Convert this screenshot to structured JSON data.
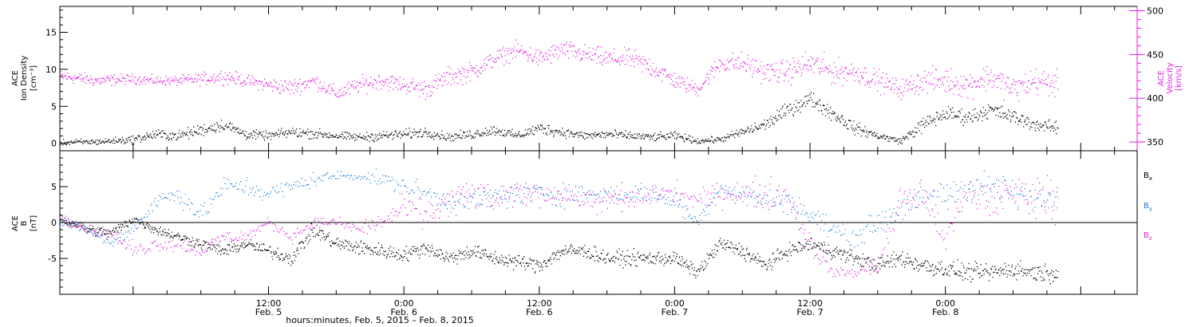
{
  "chart_data": [
    {
      "type": "scatter",
      "panel": "top",
      "ylabel_left": [
        "ACE",
        "Ion Density",
        "[cm⁻³]"
      ],
      "ylabel_right": [
        "ACE",
        "Velocity",
        "[km/s]"
      ],
      "ylim_left": [
        -1,
        18.5
      ],
      "ylim_right": [
        340,
        505
      ],
      "yticks_left": [
        "0",
        "5",
        "10",
        "15"
      ],
      "yticks_right": [
        "350",
        "400",
        "450",
        "500"
      ],
      "colors": {
        "density": "#000000",
        "velocity": "#e020e0"
      },
      "series": [
        {
          "key": "density",
          "axis": "left",
          "color": "#000000",
          "x": [
            -6.5,
            -3,
            0,
            2,
            4,
            6,
            8,
            10,
            12,
            14,
            16,
            18,
            20,
            22,
            24,
            26,
            28,
            30,
            32,
            34,
            36,
            38,
            40,
            42,
            44,
            46,
            48,
            50,
            52,
            54,
            56,
            58,
            60,
            62,
            64,
            66,
            68,
            70,
            72,
            74,
            76,
            78,
            80,
            82
          ],
          "values": [
            0.1,
            0.2,
            0.5,
            1.2,
            1.0,
            1.8,
            2.5,
            1.2,
            1.0,
            1.5,
            1.3,
            1.0,
            0.8,
            1.0,
            1.2,
            1.5,
            0.8,
            1.2,
            1.8,
            1.0,
            2.0,
            1.5,
            1.0,
            1.2,
            1.0,
            0.8,
            1.0,
            0.3,
            0.5,
            1.5,
            2.5,
            4.5,
            6.0,
            4.0,
            2.0,
            1.0,
            0.3,
            2.5,
            4.0,
            3.5,
            4.5,
            3.5,
            2.5,
            2.0
          ],
          "scatter": [
            0.6,
            0.6,
            0.8,
            1.0,
            1.0,
            1.2,
            1.2,
            1.0,
            0.8,
            1.0,
            1.0,
            0.8,
            0.8,
            1.0,
            1.0,
            1.0,
            0.8,
            1.0,
            1.0,
            0.8,
            1.2,
            1.0,
            0.8,
            1.0,
            0.8,
            0.8,
            0.8,
            0.6,
            0.6,
            1.0,
            1.2,
            1.5,
            1.5,
            1.5,
            1.2,
            0.8,
            0.6,
            1.5,
            1.5,
            1.5,
            1.5,
            1.5,
            1.2,
            1.2
          ],
          "points_per_hour": 18,
          "end_hour": 82
        },
        {
          "key": "velocity",
          "axis": "right",
          "color": "#e020e0",
          "x": [
            -6.5,
            -3,
            0,
            2,
            4,
            6,
            8,
            10,
            12,
            14,
            16,
            18,
            20,
            22,
            24,
            26,
            28,
            30,
            32,
            34,
            36,
            38,
            40,
            42,
            44,
            46,
            48,
            50,
            52,
            54,
            56,
            58,
            60,
            62,
            64,
            66,
            68,
            70,
            72,
            74,
            76,
            78,
            80,
            82
          ],
          "values": [
            425,
            420,
            422,
            420,
            420,
            422,
            425,
            420,
            415,
            412,
            420,
            405,
            415,
            420,
            415,
            410,
            425,
            430,
            445,
            455,
            445,
            455,
            450,
            445,
            445,
            435,
            420,
            410,
            440,
            440,
            430,
            430,
            440,
            430,
            430,
            420,
            410,
            420,
            420,
            415,
            425,
            410,
            420,
            415
          ],
          "scatter": [
            10,
            10,
            8,
            8,
            8,
            10,
            12,
            10,
            12,
            14,
            12,
            12,
            14,
            14,
            14,
            16,
            16,
            16,
            14,
            14,
            16,
            16,
            16,
            16,
            16,
            18,
            14,
            12,
            16,
            18,
            18,
            20,
            22,
            22,
            18,
            18,
            16,
            20,
            22,
            22,
            22,
            22,
            22,
            22
          ],
          "points_per_hour": 18,
          "end_hour": 82
        }
      ]
    },
    {
      "type": "scatter",
      "panel": "bottom",
      "ylabel_left": [
        "ACE",
        "B",
        "[nT]"
      ],
      "ylim": [
        -10,
        10
      ],
      "yticks": [
        "-5",
        "0",
        "5"
      ],
      "reference_line": 0,
      "legend": [
        "B",
        "B",
        "B"
      ],
      "legend_subscripts": [
        "x",
        "y",
        "z"
      ],
      "colors": {
        "bx": "#000000",
        "by": "#2080e0",
        "bz": "#e020e0"
      },
      "series": [
        {
          "key": "bx",
          "color": "#000000",
          "x": [
            -6.5,
            -4,
            -2,
            0,
            2,
            4,
            6,
            8,
            10,
            12,
            14,
            16,
            18,
            20,
            22,
            24,
            26,
            28,
            30,
            32,
            34,
            36,
            38,
            40,
            42,
            44,
            46,
            48,
            50,
            52,
            54,
            56,
            58,
            60,
            62,
            64,
            66,
            68,
            70,
            72,
            74,
            76,
            78,
            80,
            82
          ],
          "values": [
            0.5,
            -1,
            -1.5,
            0.5,
            -1,
            -2,
            -3,
            -4,
            -3,
            -4,
            -5,
            -1,
            -3,
            -3.5,
            -4,
            -4.5,
            -3.5,
            -5,
            -4,
            -5,
            -5.5,
            -6,
            -4,
            -4,
            -5,
            -5,
            -5,
            -5,
            -7,
            -3,
            -4,
            -6,
            -4,
            -3,
            -4,
            -5,
            -6,
            -5,
            -6,
            -6.5,
            -7,
            -7,
            -6.5,
            -7,
            -7
          ],
          "scatter": [
            1,
            1,
            1,
            1,
            1,
            1,
            1.2,
            1.2,
            1.2,
            1.2,
            1.5,
            1.5,
            1.5,
            1.5,
            1.5,
            1.5,
            1.5,
            1.5,
            1.5,
            1.5,
            1.5,
            1.5,
            1.5,
            1.5,
            1.5,
            1.5,
            1.5,
            1.5,
            1.2,
            1.5,
            1.5,
            1.5,
            1.5,
            1.5,
            1.5,
            1.5,
            1.5,
            1.8,
            1.8,
            1.8,
            1.8,
            1.8,
            1.8,
            1.8,
            1.8
          ],
          "points_per_hour": 18,
          "end_hour": 82
        },
        {
          "key": "by",
          "color": "#2080e0",
          "x": [
            -6.5,
            -4,
            -2,
            0,
            2,
            4,
            6,
            8,
            10,
            12,
            14,
            16,
            18,
            20,
            22,
            24,
            26,
            28,
            30,
            32,
            34,
            36,
            38,
            40,
            42,
            44,
            46,
            48,
            50,
            52,
            54,
            56,
            58,
            60,
            62,
            64,
            66,
            68,
            70,
            72,
            74,
            76,
            78,
            80,
            82
          ],
          "values": [
            0,
            -1,
            -3,
            -1,
            3,
            4,
            1,
            5,
            5,
            4,
            5,
            6,
            6.5,
            6.5,
            6,
            5,
            4,
            3,
            3,
            3.5,
            4,
            4,
            4,
            4,
            4,
            4,
            4,
            3,
            0,
            5,
            4,
            3,
            3,
            1,
            -1,
            -2,
            0,
            2,
            3,
            4,
            5,
            5,
            4,
            3,
            4
          ],
          "scatter": [
            1,
            1,
            1,
            1.5,
            2,
            2,
            2,
            2,
            2,
            2,
            1.5,
            1.5,
            1,
            1,
            1.5,
            2,
            2,
            2.5,
            2.5,
            2.5,
            2.5,
            2.5,
            2.5,
            2,
            2,
            2,
            2,
            2,
            1.5,
            1.5,
            2,
            2.5,
            2.5,
            2.5,
            2,
            2,
            2.5,
            3,
            3,
            3,
            3,
            3,
            3,
            3,
            3
          ],
          "points_per_hour": 10,
          "end_hour": 82
        },
        {
          "key": "bz",
          "color": "#e020e0",
          "x": [
            -6.5,
            -4,
            -2,
            0,
            2,
            4,
            6,
            8,
            10,
            12,
            14,
            16,
            18,
            20,
            22,
            24,
            26,
            28,
            30,
            32,
            34,
            36,
            38,
            40,
            42,
            44,
            46,
            48,
            50,
            52,
            54,
            56,
            58,
            60,
            62,
            64,
            66,
            68,
            70,
            72,
            74,
            76,
            78,
            80,
            82
          ],
          "values": [
            1,
            -1,
            -1.5,
            -4,
            -3,
            -3,
            -4,
            -2,
            -2,
            0,
            -2,
            0,
            0,
            -1,
            0,
            2,
            1,
            3,
            4,
            3,
            4,
            4,
            4,
            3,
            3,
            3,
            4,
            4,
            3,
            4,
            4,
            4,
            4,
            -3,
            -7,
            -7,
            -6,
            3,
            4,
            -2,
            4,
            3,
            4,
            4,
            3
          ],
          "scatter": [
            1,
            1,
            1.2,
            1.5,
            1.5,
            1.5,
            1.5,
            1.5,
            1.2,
            1,
            1.2,
            1,
            1,
            1.5,
            2,
            2.5,
            3,
            3,
            3,
            3,
            2.5,
            2.5,
            2,
            2,
            2.5,
            2.5,
            2.5,
            2.5,
            2,
            2.5,
            3,
            3,
            3,
            3,
            1,
            1,
            2,
            3.5,
            4,
            4,
            4,
            4,
            4,
            4,
            4
          ],
          "points_per_hour": 10,
          "end_hour": 82
        }
      ]
    }
  ],
  "x_axis": {
    "range_hours": [
      -6.5,
      89
    ],
    "ticks": [
      {
        "hour": 12,
        "time": "12:00",
        "date": "Feb. 5"
      },
      {
        "hour": 24,
        "time": "0:00",
        "date": "Feb. 6"
      },
      {
        "hour": 36,
        "time": "12:00",
        "date": "Feb. 6"
      },
      {
        "hour": 48,
        "time": "0:00",
        "date": "Feb. 7"
      },
      {
        "hour": 60,
        "time": "12:00",
        "date": "Feb. 7"
      },
      {
        "hour": 72,
        "time": "0:00",
        "date": "Feb. 8"
      }
    ],
    "label": "hours:minutes, Feb.  5, 2015 – Feb.  8, 2015"
  }
}
